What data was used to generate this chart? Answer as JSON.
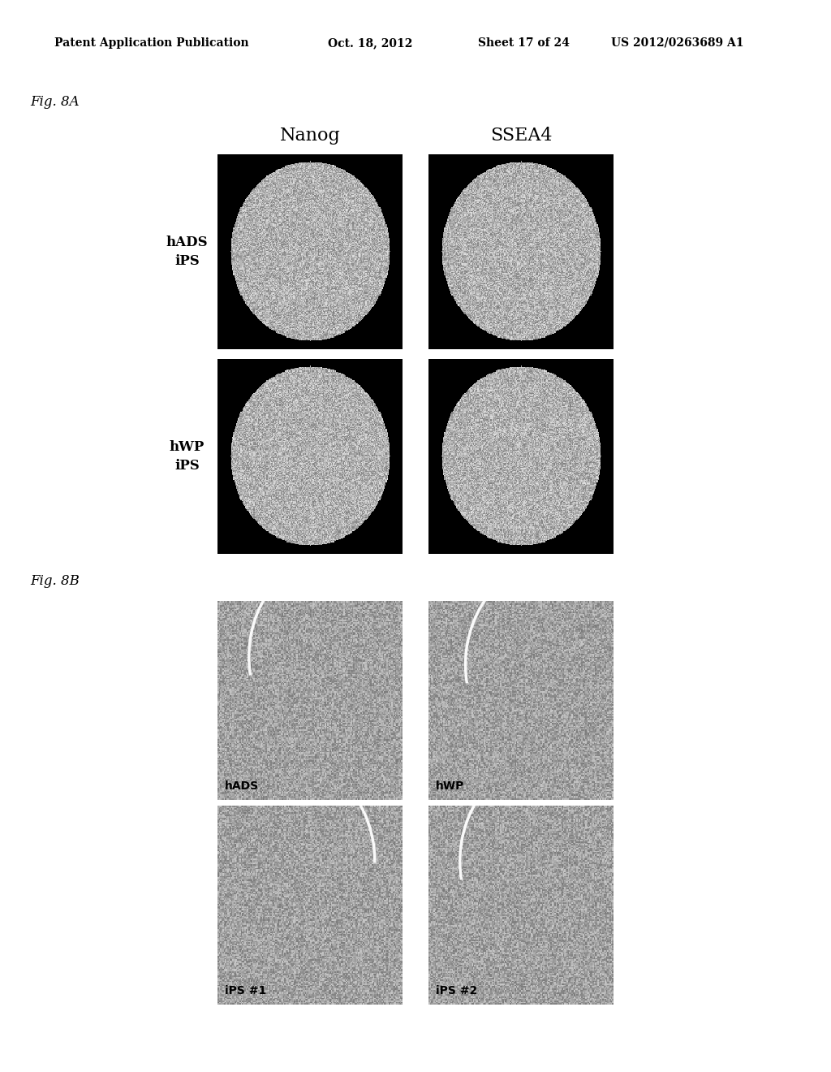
{
  "header_text": "Patent Application Publication",
  "header_date": "Oct. 18, 2012",
  "header_sheet": "Sheet 17 of 24",
  "header_patent": "US 2012/0263689 A1",
  "fig_a_label": "Fig. 8A",
  "fig_b_label": "Fig. 8B",
  "col_labels_a": [
    "Nanog",
    "SSEA4"
  ],
  "row_labels_a": [
    "hADS\niPS",
    "hWP\niPS"
  ],
  "cell_labels_b": [
    [
      "hADS",
      "hWP"
    ],
    [
      "iPS #1",
      "iPS #2"
    ]
  ],
  "bg_color": "#ffffff",
  "panel_bg_a": "#000000",
  "header_fontsize": 10,
  "col_label_fontsize": 16,
  "row_label_fontsize": 12,
  "fig_label_fontsize": 12,
  "cell_label_fontsize": 10
}
